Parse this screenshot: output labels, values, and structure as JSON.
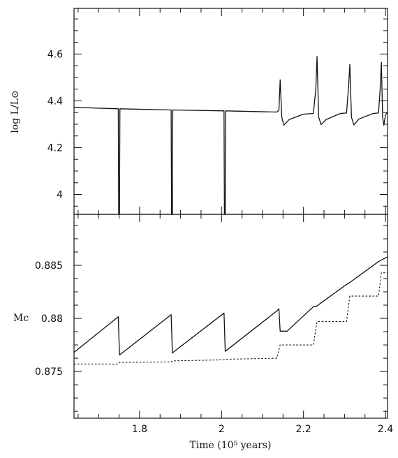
{
  "chart_data": [
    {
      "type": "line",
      "title": "",
      "xlabel": "",
      "ylabel": "log L/L⊙",
      "xlim": [
        1.64,
        2.405
      ],
      "ylim": [
        3.915,
        4.795
      ],
      "x_ticks": [
        1.8,
        2,
        2.2,
        2.4
      ],
      "y_ticks": [
        4,
        4.2,
        4.4,
        4.6
      ],
      "y_tick_labels": [
        "4",
        "4.2",
        "4.4",
        "4.6"
      ],
      "series": [
        {
          "name": "",
          "style": "solid",
          "points": [
            [
              1.64,
              4.372
            ],
            [
              1.748,
              4.366
            ],
            [
              1.749,
              3.915
            ],
            [
              1.751,
              3.915
            ],
            [
              1.752,
              4.366
            ],
            [
              1.877,
              4.361
            ],
            [
              1.878,
              3.915
            ],
            [
              1.88,
              3.915
            ],
            [
              1.881,
              4.361
            ],
            [
              2.006,
              4.357
            ],
            [
              2.007,
              3.915
            ],
            [
              2.009,
              3.915
            ],
            [
              2.01,
              4.357
            ],
            [
              2.135,
              4.352
            ],
            [
              2.14,
              4.36
            ],
            [
              2.143,
              4.49
            ],
            [
              2.147,
              4.33
            ],
            [
              2.152,
              4.296
            ],
            [
              2.165,
              4.32
            ],
            [
              2.2,
              4.343
            ],
            [
              2.224,
              4.346
            ],
            [
              2.23,
              4.45
            ],
            [
              2.233,
              4.59
            ],
            [
              2.237,
              4.33
            ],
            [
              2.243,
              4.298
            ],
            [
              2.255,
              4.32
            ],
            [
              2.29,
              4.346
            ],
            [
              2.305,
              4.348
            ],
            [
              2.31,
              4.46
            ],
            [
              2.313,
              4.555
            ],
            [
              2.317,
              4.33
            ],
            [
              2.323,
              4.297
            ],
            [
              2.335,
              4.322
            ],
            [
              2.37,
              4.346
            ],
            [
              2.383,
              4.348
            ],
            [
              2.387,
              4.45
            ],
            [
              2.39,
              4.565
            ],
            [
              2.393,
              4.33
            ],
            [
              2.396,
              4.296
            ],
            [
              2.4,
              4.34
            ],
            [
              2.405,
              4.352
            ]
          ]
        }
      ]
    },
    {
      "type": "line",
      "title": "",
      "xlabel": "Time (10⁵ years)",
      "ylabel": "Mc",
      "xlim": [
        1.64,
        2.405
      ],
      "ylim": [
        0.8706,
        0.8898
      ],
      "x_ticks": [
        1.8,
        2,
        2.2,
        2.4
      ],
      "x_tick_labels": [
        "1.8",
        "2",
        "2.2",
        "2.4"
      ],
      "y_ticks": [
        0.875,
        0.88,
        0.885
      ],
      "y_tick_labels": [
        "0.875",
        "0.88",
        "0.885"
      ],
      "series": [
        {
          "name": "",
          "style": "solid",
          "points": [
            [
              1.64,
              0.8768
            ],
            [
              1.748,
              0.88015
            ],
            [
              1.751,
              0.87655
            ],
            [
              1.877,
              0.88035
            ],
            [
              1.88,
              0.87675
            ],
            [
              2.006,
              0.8805
            ],
            [
              2.009,
              0.8769
            ],
            [
              2.135,
              0.8807
            ],
            [
              2.14,
              0.8809
            ],
            [
              2.143,
              0.8788
            ],
            [
              2.16,
              0.8788
            ],
            [
              2.224,
              0.8811
            ],
            [
              2.23,
              0.8811
            ],
            [
              2.305,
              0.8832
            ],
            [
              2.31,
              0.8833
            ],
            [
              2.383,
              0.88535
            ],
            [
              2.39,
              0.8855
            ],
            [
              2.405,
              0.8858
            ]
          ]
        },
        {
          "name": "",
          "style": "dotted",
          "points": [
            [
              1.64,
              0.8757
            ],
            [
              1.748,
              0.8757
            ],
            [
              1.751,
              0.87585
            ],
            [
              1.877,
              0.8759
            ],
            [
              1.88,
              0.876
            ],
            [
              2.006,
              0.8761
            ],
            [
              2.009,
              0.87615
            ],
            [
              2.135,
              0.87625
            ],
            [
              2.143,
              0.8775
            ],
            [
              2.224,
              0.8775
            ],
            [
              2.233,
              0.8797
            ],
            [
              2.305,
              0.8797
            ],
            [
              2.313,
              0.8821
            ],
            [
              2.383,
              0.8821
            ],
            [
              2.39,
              0.8843
            ],
            [
              2.405,
              0.8843
            ]
          ]
        }
      ]
    }
  ]
}
